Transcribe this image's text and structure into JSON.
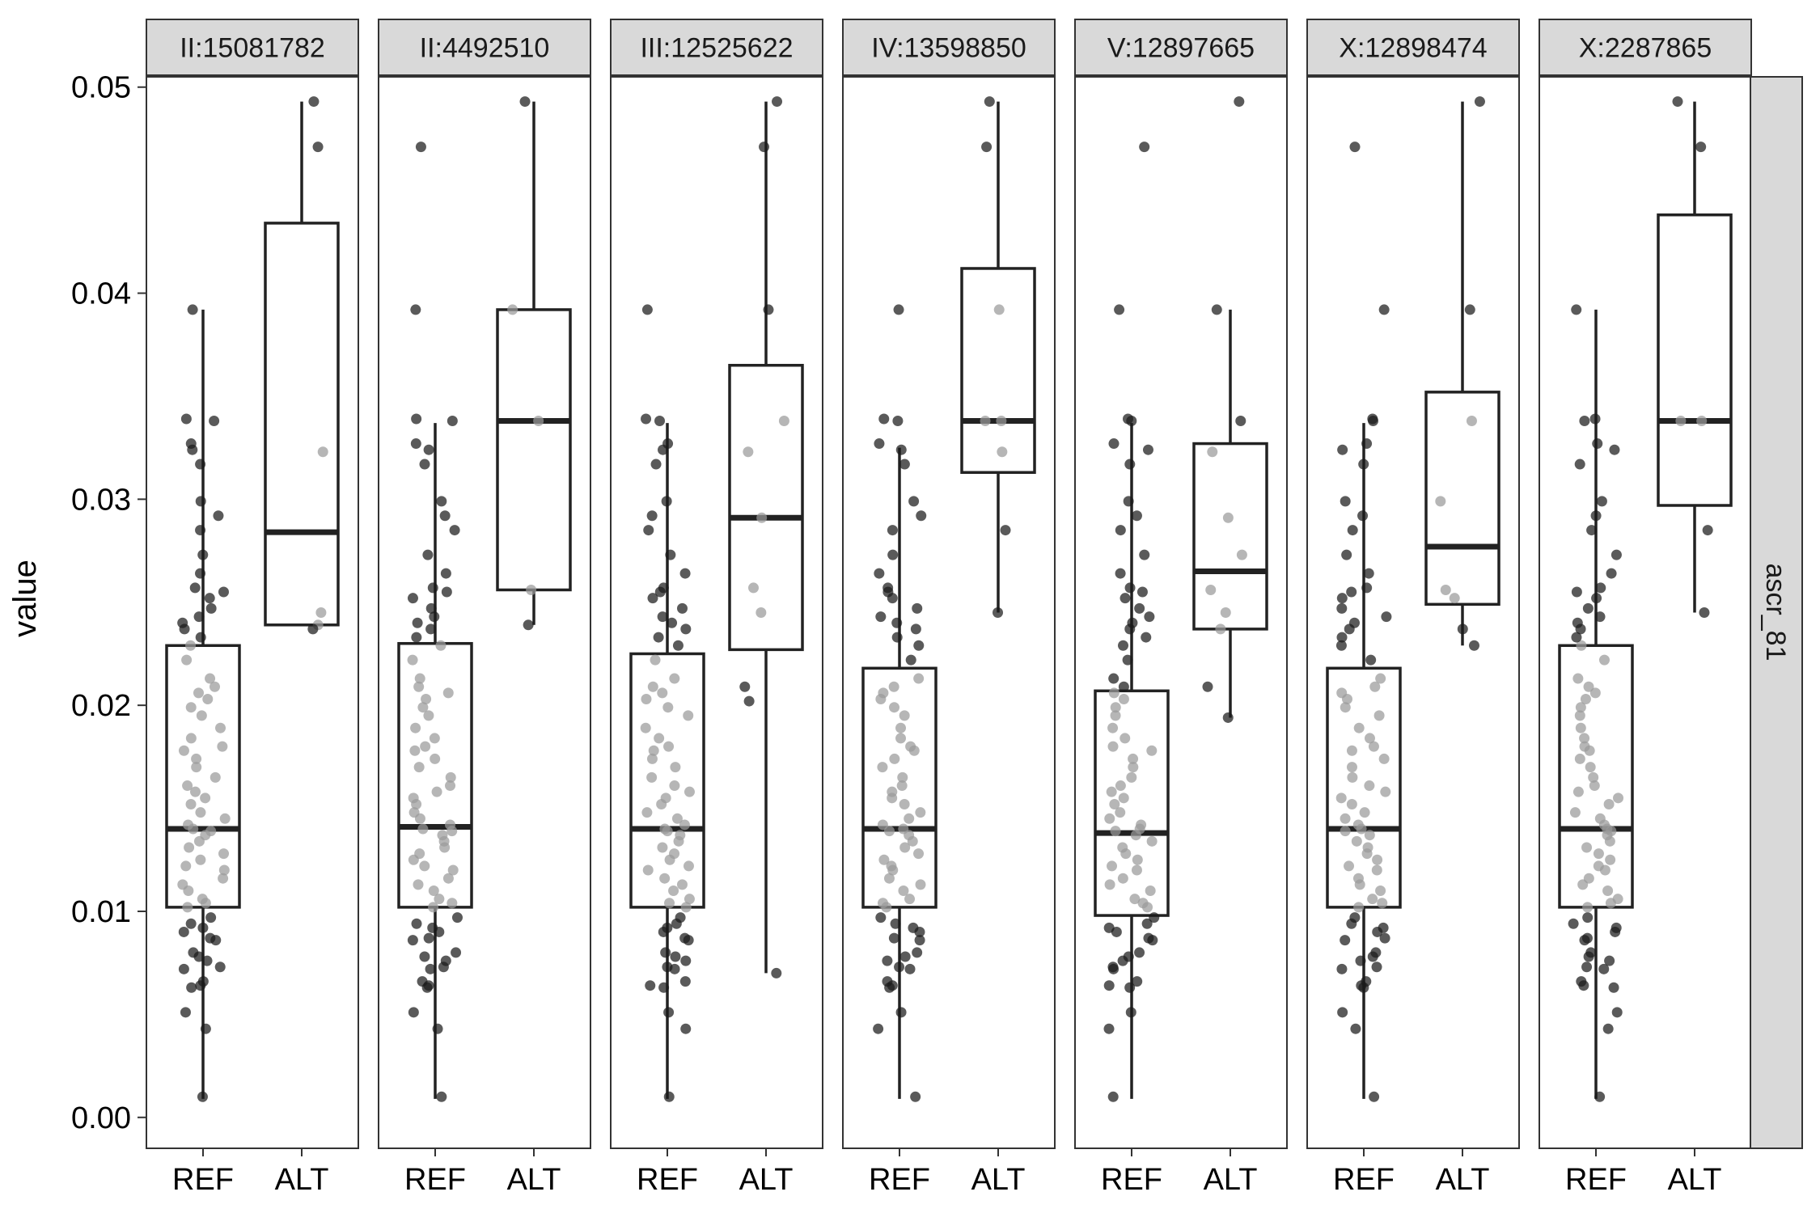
{
  "chart_data": {
    "type": "boxplot",
    "ylabel": "value",
    "xlabel": "",
    "ylim": [
      -0.0015,
      0.0505
    ],
    "yticks": [
      "0.00",
      "0.01",
      "0.02",
      "0.03",
      "0.04",
      "0.05"
    ],
    "ytick_values": [
      0.0,
      0.01,
      0.02,
      0.03,
      0.04,
      0.05
    ],
    "categories": [
      "REF",
      "ALT"
    ],
    "row_strip": "ascr_81",
    "grid": false,
    "colors": {
      "ref_points": "#1a1a1a",
      "alt_points": "#9a9a9a",
      "strip": "#d9d9d9"
    },
    "ref_points": [
      0.001,
      0.0043,
      0.0051,
      0.0063,
      0.0064,
      0.0066,
      0.0072,
      0.0073,
      0.0076,
      0.0078,
      0.008,
      0.0086,
      0.0087,
      0.009,
      0.0092,
      0.0094,
      0.0097,
      0.0102,
      0.0104,
      0.0106,
      0.011,
      0.0113,
      0.0116,
      0.012,
      0.0122,
      0.0125,
      0.0128,
      0.0131,
      0.0134,
      0.0137,
      0.0139,
      0.014,
      0.0142,
      0.0145,
      0.0148,
      0.0152,
      0.0155,
      0.0158,
      0.0161,
      0.0165,
      0.017,
      0.0174,
      0.0178,
      0.018,
      0.0184,
      0.0189,
      0.0195,
      0.0199,
      0.0203,
      0.0206,
      0.0209,
      0.0213,
      0.0222,
      0.0229,
      0.0233,
      0.0237,
      0.024,
      0.0243,
      0.0247,
      0.0252,
      0.0255,
      0.0257,
      0.0264,
      0.0273,
      0.0285,
      0.0292,
      0.0299,
      0.0317,
      0.0324,
      0.0327,
      0.0338,
      0.0339,
      0.0392
    ],
    "panels": [
      {
        "label": "II:15081782",
        "REF": {
          "q1": 0.0102,
          "median": 0.014,
          "q3": 0.0229,
          "whisker_low": 0.0009,
          "whisker_high": 0.0392
        },
        "ALT": {
          "q1": 0.0239,
          "median": 0.0284,
          "q3": 0.0434,
          "whisker_low": 0.0239,
          "whisker_high": 0.0493,
          "points": [
            0.0493,
            0.0471,
            0.0323,
            0.0245,
            0.0239,
            0.0237
          ]
        }
      },
      {
        "label": "II:4492510",
        "REF": {
          "q1": 0.0102,
          "median": 0.0141,
          "q3": 0.023,
          "whisker_low": 0.0009,
          "whisker_high": 0.0337
        },
        "ALT": {
          "q1": 0.0256,
          "median": 0.0338,
          "q3": 0.0392,
          "whisker_low": 0.0239,
          "whisker_high": 0.0493,
          "points": [
            0.0493,
            0.0392,
            0.0338,
            0.0256,
            0.0239
          ]
        },
        "extra_ref_points": [
          0.0471
        ]
      },
      {
        "label": "III:12525622",
        "REF": {
          "q1": 0.0102,
          "median": 0.014,
          "q3": 0.0225,
          "whisker_low": 0.0009,
          "whisker_high": 0.0337
        },
        "ALT": {
          "q1": 0.0227,
          "median": 0.0291,
          "q3": 0.0365,
          "whisker_low": 0.007,
          "whisker_high": 0.0493,
          "points": [
            0.0493,
            0.0471,
            0.0392,
            0.0338,
            0.0323,
            0.0291,
            0.0257,
            0.0245,
            0.0209,
            0.0202,
            0.007
          ]
        }
      },
      {
        "label": "IV:13598850",
        "REF": {
          "q1": 0.0102,
          "median": 0.014,
          "q3": 0.0218,
          "whisker_low": 0.0009,
          "whisker_high": 0.0325
        },
        "ALT": {
          "q1": 0.0313,
          "median": 0.0338,
          "q3": 0.0412,
          "whisker_low": 0.0245,
          "whisker_high": 0.0493,
          "points": [
            0.0493,
            0.0471,
            0.0392,
            0.0338,
            0.0338,
            0.0323,
            0.0285,
            0.0245
          ]
        }
      },
      {
        "label": "V:12897665",
        "REF": {
          "q1": 0.0098,
          "median": 0.0138,
          "q3": 0.0207,
          "whisker_low": 0.0009,
          "whisker_high": 0.0337
        },
        "ALT": {
          "q1": 0.0237,
          "median": 0.0265,
          "q3": 0.0327,
          "whisker_low": 0.0194,
          "whisker_high": 0.0392,
          "points": [
            0.0493,
            0.0392,
            0.0338,
            0.0323,
            0.0291,
            0.0273,
            0.0256,
            0.0245,
            0.0237,
            0.0209,
            0.0194
          ]
        },
        "extra_ref_points": [
          0.0471
        ]
      },
      {
        "label": "X:12898474",
        "REF": {
          "q1": 0.0102,
          "median": 0.014,
          "q3": 0.0218,
          "whisker_low": 0.0009,
          "whisker_high": 0.0337
        },
        "ALT": {
          "q1": 0.0249,
          "median": 0.0277,
          "q3": 0.0352,
          "whisker_low": 0.0229,
          "whisker_high": 0.0493,
          "points": [
            0.0493,
            0.0392,
            0.0338,
            0.0299,
            0.0256,
            0.0252,
            0.0237,
            0.0229
          ]
        },
        "extra_ref_points": [
          0.0471
        ]
      },
      {
        "label": "X:2287865",
        "REF": {
          "q1": 0.0102,
          "median": 0.014,
          "q3": 0.0229,
          "whisker_low": 0.0009,
          "whisker_high": 0.0392
        },
        "ALT": {
          "q1": 0.0297,
          "median": 0.0338,
          "q3": 0.0438,
          "whisker_low": 0.0245,
          "whisker_high": 0.0493,
          "points": [
            0.0493,
            0.0471,
            0.0338,
            0.0338,
            0.0285,
            0.0245
          ]
        }
      }
    ]
  }
}
